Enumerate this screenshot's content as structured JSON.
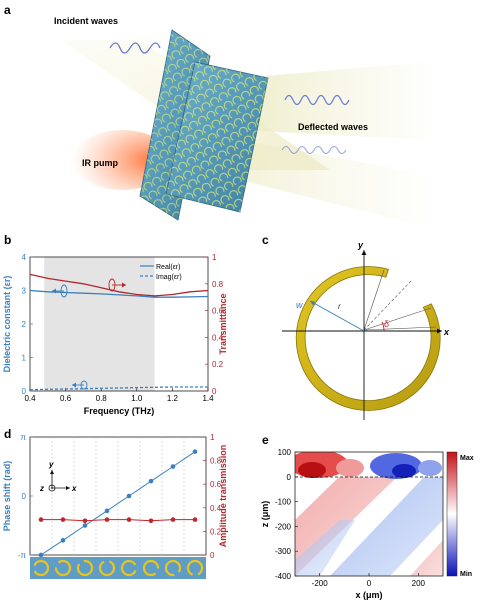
{
  "panel_a": {
    "letter": "a",
    "labels": {
      "incident": "Incident waves",
      "deflected": "Deflected waves",
      "pump": "IR pump"
    }
  },
  "panel_b": {
    "letter": "b",
    "ylabel_left": "Dielectric constant (εr)",
    "ylabel_right": "Transmittance",
    "xlabel": "Frequency (THz)",
    "legend": [
      "Real(εr)",
      "Imag(εr)"
    ]
  },
  "panel_c": {
    "letter": "c",
    "labels": {
      "y": "y",
      "x": "x",
      "w": "w",
      "r": "r",
      "delta": "δ"
    }
  },
  "panel_d": {
    "letter": "d",
    "ylabel_left": "Phase shift (rad)",
    "ylabel_right": "Amplitude transmission",
    "axis_labels": {
      "y": "y",
      "z": "z",
      "x": "x"
    }
  },
  "panel_e": {
    "letter": "e",
    "xlabel": "x (μm)",
    "ylabel": "z (μm)",
    "colorbar": {
      "max": "Max",
      "min": "Min"
    }
  },
  "chart_data": [
    {
      "type": "line",
      "panel": "b",
      "x": [
        0.4,
        0.5,
        0.6,
        0.7,
        0.8,
        0.9,
        1.0,
        1.1,
        1.2,
        1.3,
        1.4
      ],
      "xlim": [
        0.4,
        1.4
      ],
      "ylim_left": [
        0,
        4
      ],
      "ylim_right": [
        0,
        1
      ],
      "xticks": [
        "0.4",
        "0.6",
        "0.8",
        "1.0",
        "1.2",
        "1.4"
      ],
      "yticks_left": [
        "0",
        "1",
        "2",
        "3",
        "4"
      ],
      "yticks_right": [
        "0",
        "0.2",
        "0.4",
        "0.6",
        "0.8",
        "1"
      ],
      "shaded_region": [
        0.48,
        1.1
      ],
      "series": [
        {
          "name": "Real(εr)",
          "axis": "left",
          "color": "#3a7fc1",
          "style": "solid",
          "values": [
            3.0,
            2.96,
            2.94,
            2.92,
            2.9,
            2.87,
            2.84,
            2.8,
            2.8,
            2.81,
            2.82
          ]
        },
        {
          "name": "Imag(εr)",
          "axis": "left",
          "color": "#3a7fc1",
          "style": "dashed",
          "values": [
            0.04,
            0.05,
            0.06,
            0.07,
            0.08,
            0.09,
            0.1,
            0.11,
            0.12,
            0.12,
            0.12
          ]
        },
        {
          "name": "Transmittance",
          "axis": "right",
          "color": "#b3262c",
          "style": "solid",
          "values": [
            0.87,
            0.84,
            0.82,
            0.8,
            0.77,
            0.74,
            0.72,
            0.71,
            0.72,
            0.74,
            0.75
          ]
        }
      ]
    },
    {
      "type": "scatter",
      "panel": "d",
      "x": [
        1,
        2,
        3,
        4,
        5,
        6,
        7,
        8
      ],
      "ylim_left": [
        -3.14159,
        3.14159
      ],
      "ylim_right": [
        0,
        1
      ],
      "yticks_left": [
        "-π",
        "0",
        "π"
      ],
      "yticks_right": [
        "0",
        "0.2",
        "0.4",
        "0.6",
        "0.8",
        "1"
      ],
      "series": [
        {
          "name": "Phase shift",
          "axis": "left",
          "color": "#3a7fc1",
          "values": [
            -3.14,
            -2.36,
            -1.57,
            -0.79,
            0.0,
            0.79,
            1.57,
            2.36
          ]
        },
        {
          "name": "Amplitude transmission",
          "axis": "right",
          "color": "#c0262c",
          "values": [
            0.3,
            0.3,
            0.29,
            0.3,
            0.3,
            0.29,
            0.3,
            0.3
          ]
        }
      ]
    },
    {
      "type": "heatmap",
      "panel": "e",
      "xlim": [
        -300,
        300
      ],
      "ylim": [
        -400,
        100
      ],
      "xticks": [
        "-200",
        "0",
        "200"
      ],
      "yticks": [
        "100",
        "0",
        "-100",
        "-200",
        "-300",
        "-400"
      ],
      "colorscale": [
        "#1f1fd8",
        "#ffffff",
        "#d01a1a"
      ]
    }
  ]
}
